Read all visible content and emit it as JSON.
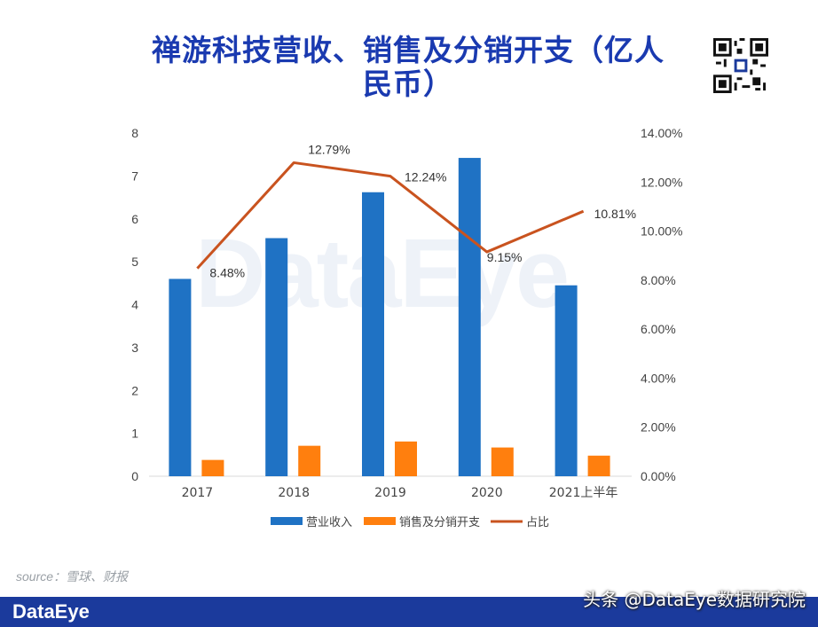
{
  "title": "禅游科技营收、销售及分销开支（亿人民币）",
  "watermark": "DataEye",
  "source": "source：雪球、财报",
  "footer": {
    "logo": "DataEye",
    "credit": "头条 @DataEye数据研究院"
  },
  "colors": {
    "title": "#1a3ab0",
    "revenue": "#1f72c4",
    "expense": "#ff7f0e",
    "ratio": "#c9531f",
    "footer": "#1b3a9c"
  },
  "chart_data": {
    "type": "bar",
    "categories": [
      "2017",
      "2018",
      "2019",
      "2020",
      "2021上半年"
    ],
    "series": [
      {
        "name": "营业收入",
        "type": "bar",
        "axis": "left",
        "values": [
          4.6,
          5.55,
          6.62,
          7.42,
          4.45
        ]
      },
      {
        "name": "销售及分销开支",
        "type": "bar",
        "axis": "left",
        "values": [
          0.38,
          0.71,
          0.81,
          0.67,
          0.48
        ]
      },
      {
        "name": "占比",
        "type": "line",
        "axis": "right",
        "values": [
          8.48,
          12.79,
          12.24,
          9.15,
          10.81
        ],
        "labels": [
          "8.48%",
          "12.79%",
          "12.24%",
          "9.15%",
          "10.81%"
        ]
      }
    ],
    "y_left": {
      "min": 0,
      "max": 8,
      "ticks": [
        "0",
        "1",
        "2",
        "3",
        "4",
        "5",
        "6",
        "7",
        "8"
      ]
    },
    "y_right": {
      "min": 0,
      "max": 14,
      "ticks": [
        "0.00%",
        "2.00%",
        "4.00%",
        "6.00%",
        "8.00%",
        "10.00%",
        "12.00%",
        "14.00%"
      ]
    },
    "legend_position": "bottom",
    "grid": false
  }
}
